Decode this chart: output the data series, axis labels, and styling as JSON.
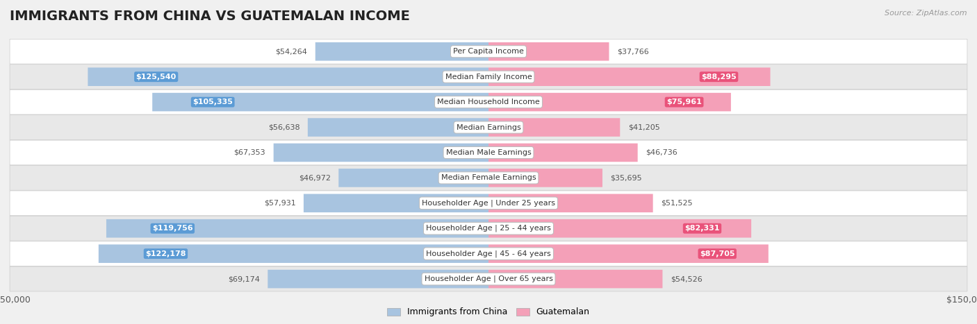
{
  "title": "IMMIGRANTS FROM CHINA VS GUATEMALAN INCOME",
  "source": "Source: ZipAtlas.com",
  "categories": [
    "Per Capita Income",
    "Median Family Income",
    "Median Household Income",
    "Median Earnings",
    "Median Male Earnings",
    "Median Female Earnings",
    "Householder Age | Under 25 years",
    "Householder Age | 25 - 44 years",
    "Householder Age | 45 - 64 years",
    "Householder Age | Over 65 years"
  ],
  "china_values": [
    54264,
    125540,
    105335,
    56638,
    67353,
    46972,
    57931,
    119756,
    122178,
    69174
  ],
  "guatemalan_values": [
    37766,
    88295,
    75961,
    41205,
    46736,
    35695,
    51525,
    82331,
    87705,
    54526
  ],
  "china_labels": [
    "$54,264",
    "$125,540",
    "$105,335",
    "$56,638",
    "$67,353",
    "$46,972",
    "$57,931",
    "$119,756",
    "$122,178",
    "$69,174"
  ],
  "guatemalan_labels": [
    "$37,766",
    "$88,295",
    "$75,961",
    "$41,205",
    "$46,736",
    "$35,695",
    "$51,525",
    "$82,331",
    "$87,705",
    "$54,526"
  ],
  "china_bar_color": "#a8c4e0",
  "china_badge_color": "#5b9bd5",
  "guatemalan_bar_color": "#f4a0b8",
  "guatemalan_badge_color": "#e9527a",
  "max_value": 150000,
  "bg_color": "#f0f0f0",
  "row_bg_color": "#e8e8e8",
  "row_white_color": "#ffffff",
  "label_outside_color": "#555555",
  "title_fontsize": 14,
  "source_fontsize": 8,
  "bar_label_fontsize": 8,
  "category_fontsize": 8,
  "legend_fontsize": 9,
  "tick_fontsize": 9,
  "china_inside_threshold": 75000,
  "guat_inside_threshold": 65000
}
